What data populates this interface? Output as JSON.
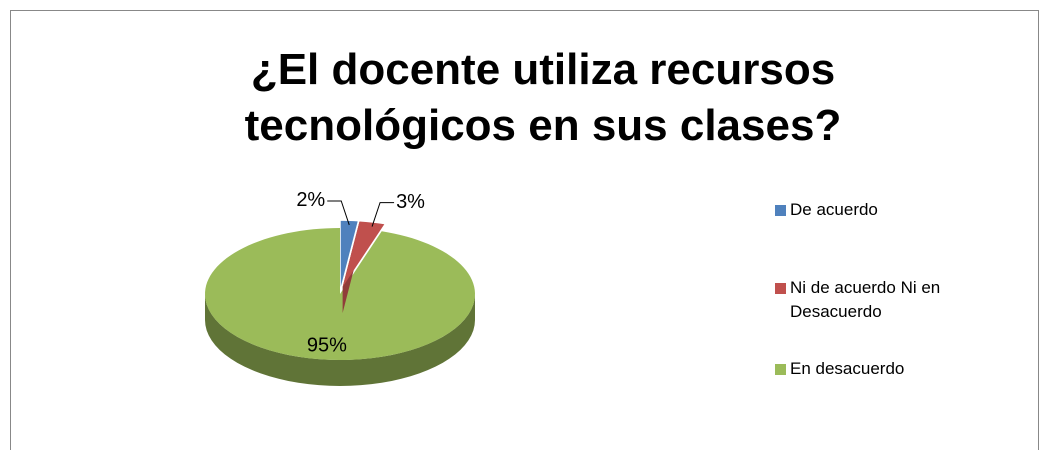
{
  "chart_data": {
    "type": "pie",
    "title": "¿El docente utiliza recursos tecnológicos en sus clases?",
    "categories": [
      "De acuerdo",
      "Ni de acuerdo Ni en Desacuerdo",
      "En desacuerdo"
    ],
    "values": [
      2,
      3,
      95
    ],
    "value_labels": [
      "2%",
      "3%",
      "95%"
    ],
    "colors": [
      "#4f81bd",
      "#c0504d",
      "#9bbb59"
    ],
    "legend": "right"
  }
}
